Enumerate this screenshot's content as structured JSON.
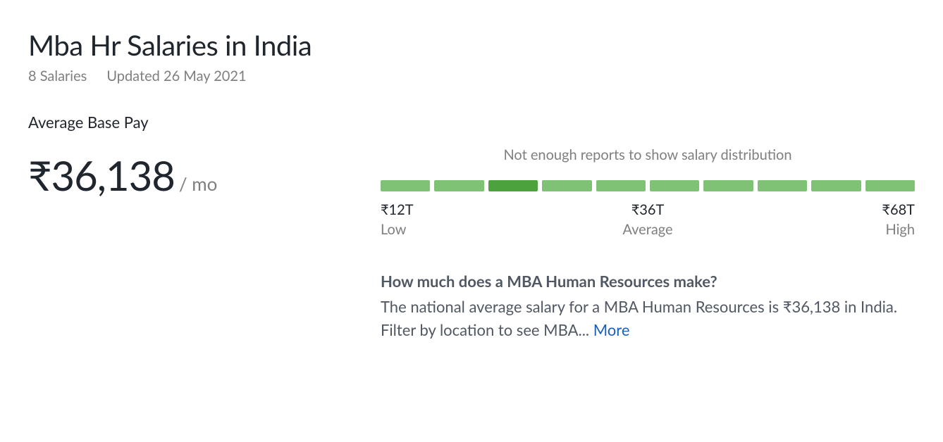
{
  "header": {
    "title": "Mba Hr Salaries in India",
    "salary_count": "8 Salaries",
    "updated": "Updated 26 May 2021"
  },
  "base_pay": {
    "label": "Average Base Pay",
    "amount": "₹36,138",
    "period": "/ mo"
  },
  "distribution": {
    "message": "Not enough reports to show salary distribution",
    "bar_count": 10,
    "bar_color": "#80c275",
    "highlight_index": 2,
    "highlight_color": "#4ca33e",
    "low": {
      "value": "₹12T",
      "label": "Low"
    },
    "avg": {
      "value": "₹36T",
      "label": "Average"
    },
    "high": {
      "value": "₹68T",
      "label": "High"
    }
  },
  "faq": {
    "question": "How much does a MBA Human Resources make?",
    "answer": "The national average salary for a MBA Human Resources is ₹36,138 in India. Filter by location to see MBA... ",
    "more": "More"
  }
}
